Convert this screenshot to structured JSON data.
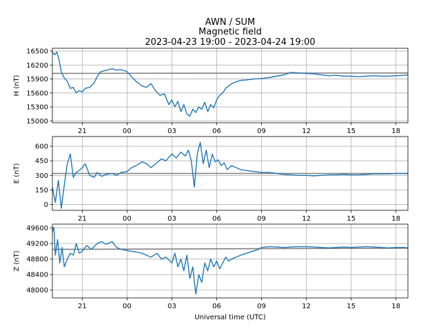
{
  "title": {
    "line1": "AWN / SUM",
    "line2": "Magnetic field",
    "line3": "2023-04-23 19:00 - 2023-04-24 19:00"
  },
  "xlabel": "Universal time (UTC)",
  "colors": {
    "trace": "#1f77b4",
    "baseline": "#808080",
    "grid": "#b0b0b0"
  },
  "chart_data": [
    {
      "type": "line",
      "ylabel": "H (nT)",
      "xlim": [
        19.0,
        42.8
      ],
      "ylim": [
        14960,
        16560
      ],
      "yticks": [
        15000,
        15300,
        15600,
        15900,
        16200,
        16500
      ],
      "xticks": [
        21,
        24,
        27,
        30,
        33,
        36,
        39,
        42
      ],
      "xtick_labels": [
        "21",
        "00",
        "03",
        "06",
        "09",
        "12",
        "15",
        "18"
      ],
      "grid": true,
      "baseline": {
        "x": [
          19.0,
          42.8
        ],
        "y": [
          16020,
          16030
        ]
      },
      "series": [
        {
          "x": [
            19.0,
            19.15,
            19.3,
            19.45,
            19.6,
            19.8,
            20.0,
            20.2,
            20.4,
            20.6,
            20.8,
            21.0,
            21.2,
            21.5,
            21.8,
            22.0,
            22.2,
            22.5,
            22.8,
            23.0,
            23.3,
            23.6,
            24.0,
            24.3,
            24.6,
            25.0,
            25.3,
            25.6,
            25.9,
            26.2,
            26.5,
            26.8,
            27.0,
            27.2,
            27.4,
            27.6,
            27.8,
            28.0,
            28.2,
            28.4,
            28.6,
            28.8,
            29.0,
            29.2,
            29.4,
            29.6,
            29.8,
            30.0,
            30.2,
            30.4,
            30.6,
            30.8,
            31.0,
            31.3,
            31.6,
            32.0,
            32.5,
            33.0,
            33.5,
            34.0,
            34.5,
            35.0,
            35.5,
            36.0,
            36.5,
            37.0,
            37.5,
            38.0,
            38.5,
            39.0,
            39.5,
            40.0,
            40.5,
            41.0,
            41.5,
            42.0,
            42.5,
            42.8
          ],
          "y": [
            16480,
            16420,
            16480,
            16300,
            16050,
            15920,
            15850,
            15700,
            15720,
            15600,
            15650,
            15620,
            15700,
            15720,
            15820,
            15950,
            16050,
            16080,
            16100,
            16120,
            16090,
            16100,
            16060,
            15950,
            15850,
            15750,
            15720,
            15800,
            15650,
            15550,
            15580,
            15350,
            15450,
            15300,
            15420,
            15200,
            15350,
            15150,
            15100,
            15250,
            15180,
            15300,
            15250,
            15400,
            15200,
            15350,
            15280,
            15450,
            15550,
            15600,
            15700,
            15750,
            15800,
            15840,
            15870,
            15880,
            15900,
            15910,
            15930,
            15960,
            15990,
            16040,
            16030,
            16020,
            16010,
            15990,
            15970,
            15980,
            15960,
            15960,
            15950,
            15960,
            15970,
            15960,
            15960,
            15970,
            15980,
            15990
          ]
        }
      ]
    },
    {
      "type": "line",
      "ylabel": "E (nT)",
      "xlim": [
        19.0,
        42.8
      ],
      "ylim": [
        -60,
        700
      ],
      "yticks": [
        0,
        150,
        300,
        450,
        600
      ],
      "xticks": [
        21,
        24,
        27,
        30,
        33,
        36,
        39,
        42
      ],
      "xtick_labels": [
        "21",
        "00",
        "03",
        "06",
        "09",
        "12",
        "15",
        "18"
      ],
      "grid": true,
      "baseline": {
        "x": [
          19.0,
          42.8
        ],
        "y": [
          320,
          320
        ]
      },
      "series": [
        {
          "x": [
            19.0,
            19.2,
            19.4,
            19.6,
            19.8,
            20.0,
            20.2,
            20.4,
            20.6,
            20.8,
            21.0,
            21.2,
            21.5,
            21.8,
            22.0,
            22.3,
            22.6,
            23.0,
            23.3,
            23.6,
            24.0,
            24.3,
            24.6,
            25.0,
            25.3,
            25.6,
            26.0,
            26.3,
            26.6,
            27.0,
            27.3,
            27.6,
            27.9,
            28.1,
            28.3,
            28.5,
            28.7,
            28.9,
            29.1,
            29.3,
            29.5,
            29.7,
            29.9,
            30.1,
            30.3,
            30.5,
            30.7,
            31.0,
            31.3,
            31.6,
            32.0,
            32.5,
            33.0,
            33.5,
            34.0,
            34.5,
            35.0,
            35.5,
            36.0,
            36.5,
            37.0,
            37.5,
            38.0,
            38.5,
            39.0,
            39.5,
            40.0,
            40.5,
            41.0,
            41.5,
            42.0,
            42.5,
            42.8
          ],
          "y": [
            180,
            20,
            250,
            -40,
            200,
            420,
            520,
            280,
            330,
            350,
            380,
            420,
            300,
            280,
            330,
            290,
            310,
            320,
            300,
            330,
            340,
            380,
            400,
            440,
            420,
            380,
            430,
            470,
            450,
            520,
            480,
            540,
            500,
            560,
            450,
            180,
            520,
            640,
            420,
            560,
            380,
            520,
            440,
            460,
            400,
            430,
            360,
            400,
            380,
            360,
            350,
            340,
            330,
            330,
            320,
            310,
            305,
            300,
            300,
            295,
            300,
            305,
            305,
            310,
            305,
            305,
            310,
            315,
            315,
            315,
            320,
            320,
            320
          ]
        }
      ]
    },
    {
      "type": "line",
      "ylabel": "Z (nT)",
      "xlim": [
        19.0,
        42.8
      ],
      "ylim": [
        47800,
        49700
      ],
      "yticks": [
        48000,
        48400,
        48800,
        49200,
        49600
      ],
      "xticks": [
        21,
        24,
        27,
        30,
        33,
        36,
        39,
        42
      ],
      "xtick_labels": [
        "21",
        "00",
        "03",
        "06",
        "09",
        "12",
        "15",
        "18"
      ],
      "grid": true,
      "baseline": {
        "x": [
          19.0,
          42.8
        ],
        "y": [
          49050,
          49080
        ]
      },
      "series": [
        {
          "x": [
            19.0,
            19.1,
            19.2,
            19.35,
            19.5,
            19.65,
            19.8,
            20.0,
            20.2,
            20.4,
            20.6,
            20.8,
            21.0,
            21.3,
            21.6,
            22.0,
            22.3,
            22.6,
            23.0,
            23.3,
            23.6,
            24.0,
            24.3,
            24.6,
            25.0,
            25.3,
            25.6,
            26.0,
            26.3,
            26.6,
            27.0,
            27.2,
            27.4,
            27.6,
            27.8,
            28.0,
            28.2,
            28.4,
            28.6,
            28.8,
            29.0,
            29.2,
            29.4,
            29.6,
            29.8,
            30.0,
            30.2,
            30.4,
            30.6,
            30.8,
            31.0,
            31.3,
            31.6,
            32.0,
            32.4,
            32.8,
            33.0,
            33.5,
            34.0,
            34.5,
            35.0,
            35.5,
            36.0,
            36.5,
            37.0,
            37.5,
            38.0,
            38.5,
            39.0,
            39.5,
            40.0,
            40.5,
            41.0,
            41.5,
            42.0,
            42.5,
            42.8
          ],
          "y": [
            49500,
            49620,
            48900,
            49300,
            48700,
            49100,
            48600,
            48800,
            48950,
            48900,
            49200,
            48950,
            49000,
            49150,
            49050,
            49200,
            49250,
            49180,
            49250,
            49100,
            49050,
            49020,
            49000,
            48980,
            48950,
            48900,
            48850,
            48950,
            48800,
            48850,
            48700,
            48950,
            48600,
            48800,
            48500,
            48900,
            48300,
            48600,
            47900,
            48400,
            48200,
            48700,
            48500,
            48800,
            48600,
            48750,
            48550,
            48700,
            48850,
            48750,
            48800,
            48850,
            48900,
            48950,
            49000,
            49050,
            49100,
            49120,
            49110,
            49100,
            49110,
            49120,
            49120,
            49110,
            49100,
            49090,
            49100,
            49110,
            49100,
            49110,
            49120,
            49110,
            49100,
            49090,
            49100,
            49100,
            49090
          ]
        }
      ]
    }
  ]
}
